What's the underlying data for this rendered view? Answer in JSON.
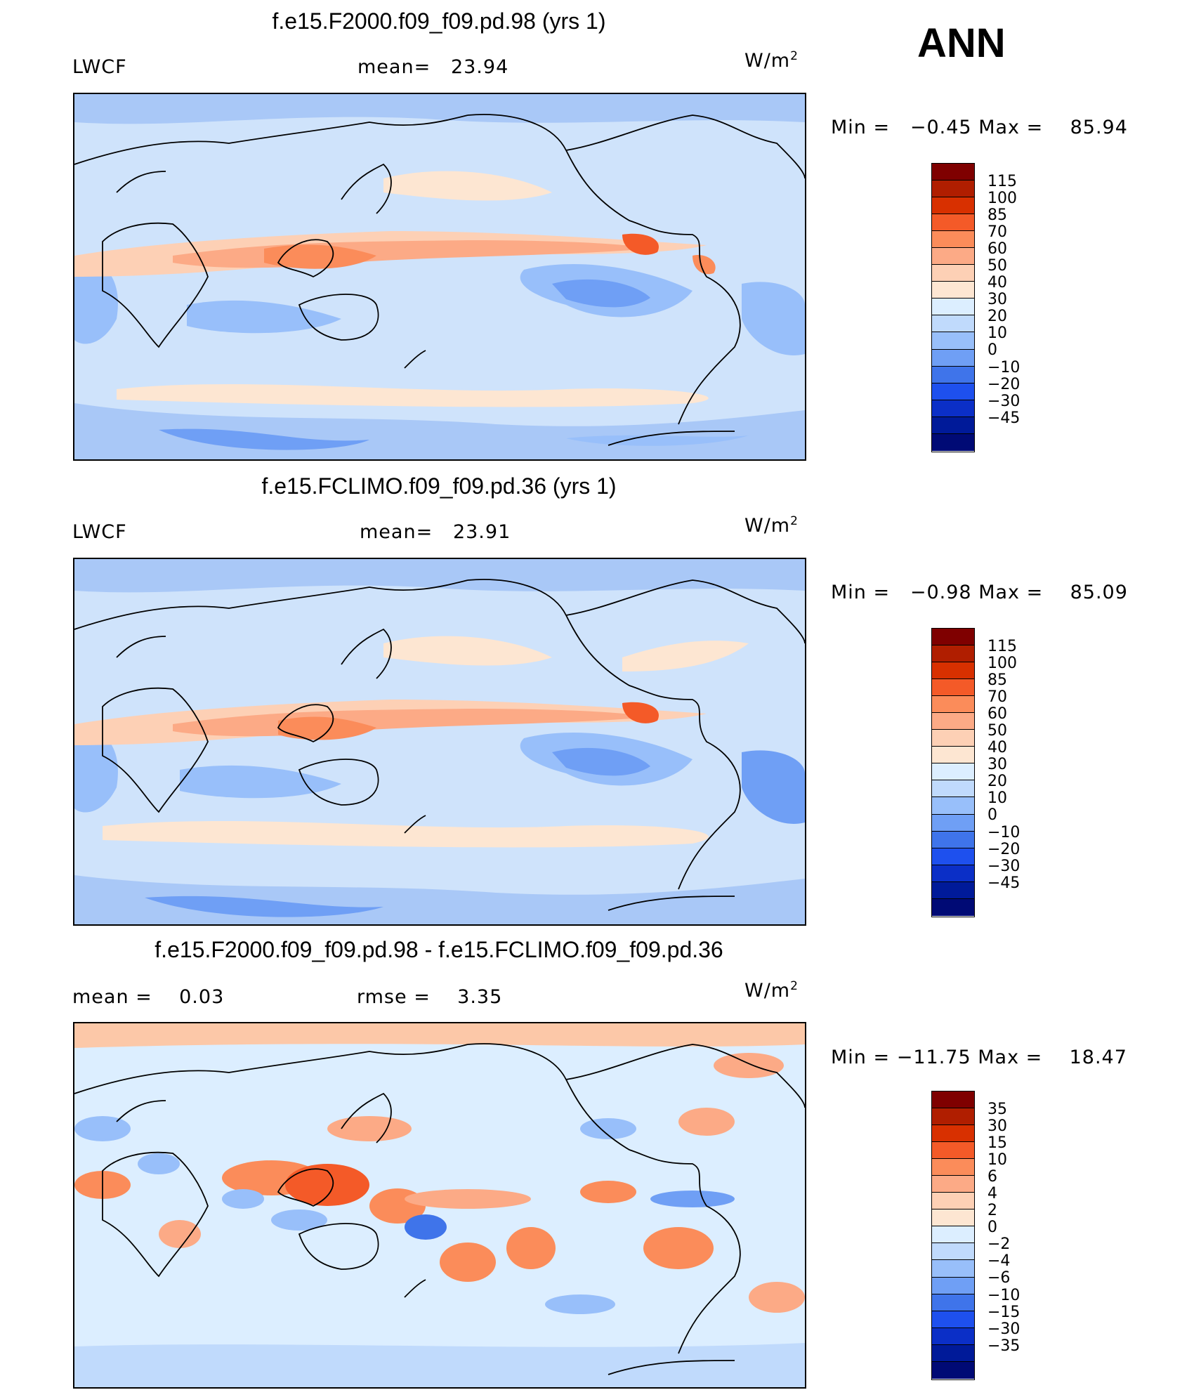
{
  "season": "ANN",
  "panels": [
    {
      "title": "f.e15.F2000.f09_f09.pd.98 (yrs 1)",
      "left": "LWCF",
      "mid_label": "mean=",
      "mid_value": "23.94",
      "units": "W/m",
      "units_sup": "2",
      "minmax": {
        "min_label": "Min =",
        "min": "−0.45",
        "max_label": "Max =",
        "max": "85.94"
      },
      "colorbar": {
        "colors": [
          "#7f0000",
          "#b01e00",
          "#d83000",
          "#f45a28",
          "#fb8c5a",
          "#fcaa86",
          "#fdd0b5",
          "#fde6d2",
          "#dceeff",
          "#c0dafc",
          "#98bffa",
          "#6f9ff5",
          "#3f74ea",
          "#1e50ee",
          "#0b2fc7",
          "#001a99",
          "#000a75"
        ],
        "labels": [
          "115",
          "100",
          "85",
          "70",
          "60",
          "50",
          "40",
          "30",
          "20",
          "10",
          "0",
          "−10",
          "−20",
          "−30",
          "−45"
        ]
      }
    },
    {
      "title": "f.e15.FCLIMO.f09_f09.pd.36 (yrs 1)",
      "left": "LWCF",
      "mid_label": "mean=",
      "mid_value": "23.91",
      "units": "W/m",
      "units_sup": "2",
      "minmax": {
        "min_label": "Min =",
        "min": "−0.98",
        "max_label": "Max =",
        "max": "85.09"
      },
      "colorbar": {
        "colors": [
          "#7f0000",
          "#b01e00",
          "#d83000",
          "#f45a28",
          "#fb8c5a",
          "#fcaa86",
          "#fdd0b5",
          "#fde6d2",
          "#dceeff",
          "#c0dafc",
          "#98bffa",
          "#6f9ff5",
          "#3f74ea",
          "#1e50ee",
          "#0b2fc7",
          "#001a99",
          "#000a75"
        ],
        "labels": [
          "115",
          "100",
          "85",
          "70",
          "60",
          "50",
          "40",
          "30",
          "20",
          "10",
          "0",
          "−10",
          "−20",
          "−30",
          "−45"
        ]
      }
    },
    {
      "title": "f.e15.F2000.f09_f09.pd.98 - f.e15.FCLIMO.f09_f09.pd.36",
      "left_label": "mean =",
      "left_value": "0.03",
      "mid_label": "rmse =",
      "mid_value": "3.35",
      "units": "W/m",
      "units_sup": "2",
      "minmax": {
        "min_label": "Min =",
        "min": "−11.75",
        "max_label": "Max =",
        "max": "18.47"
      },
      "colorbar": {
        "colors": [
          "#7f0000",
          "#b01e00",
          "#d83000",
          "#f45a28",
          "#fb8c5a",
          "#fcaa86",
          "#fdd0b5",
          "#fde6d2",
          "#dceeff",
          "#c0dafc",
          "#98bffa",
          "#6f9ff5",
          "#3f74ea",
          "#1e50ee",
          "#0b2fc7",
          "#001a99",
          "#000a75"
        ],
        "labels": [
          "35",
          "30",
          "15",
          "10",
          "6",
          "4",
          "2",
          "0",
          "−2",
          "−4",
          "−6",
          "−10",
          "−15",
          "−30",
          "−35"
        ]
      }
    }
  ]
}
